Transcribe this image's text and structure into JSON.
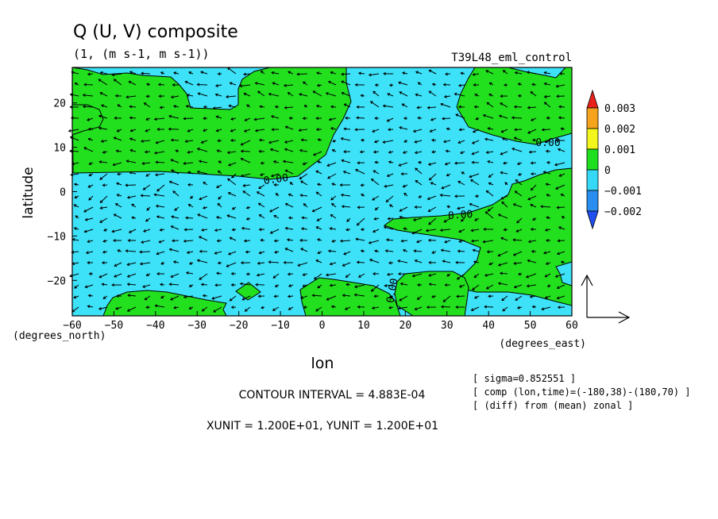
{
  "title": "Q (U, V) composite",
  "units_line": "(1, (m s-1, m s-1))",
  "run_name": "T39L48_eml_control",
  "chart_data": {
    "type": "heatmap",
    "title": "Q (U, V) composite",
    "xlabel": "lon",
    "ylabel": "latitude",
    "x_unit_label": "(degrees_east)",
    "y_unit_label": "(degrees_north)",
    "xlim": [
      -60,
      60
    ],
    "ylim": [
      -28,
      28
    ],
    "x_ticks": [
      -60,
      -50,
      -40,
      -30,
      -20,
      -10,
      0,
      10,
      20,
      30,
      40,
      50,
      60
    ],
    "y_ticks": [
      -20,
      -10,
      0,
      10,
      20
    ],
    "contour_labels": [
      "0.00",
      "0.00",
      "0.00",
      "0.00"
    ],
    "colorbar": {
      "levels": [
        "0.003",
        "0.002",
        "0.001",
        "0",
        "-0.001",
        "-0.002"
      ],
      "colors": [
        "#e8211b",
        "#f6a31e",
        "#f4f51d",
        "#1ee01e",
        "#36d9f5",
        "#2a8ef0",
        "#1f4ff0"
      ]
    },
    "fill_colors": {
      "positive": "#22e01e",
      "negative": "#3de1f8"
    }
  },
  "footer": {
    "contour_interval": "CONTOUR INTERVAL = 4.883E-04",
    "units": "XUNIT = 1.200E+01, YUNIT = 1.200E+01",
    "notes": [
      "[ sigma=0.852551 ]",
      "[ comp (lon,time)=(-180,38)-(180,70) ]",
      "[ (diff) from (mean) zonal ]"
    ]
  }
}
